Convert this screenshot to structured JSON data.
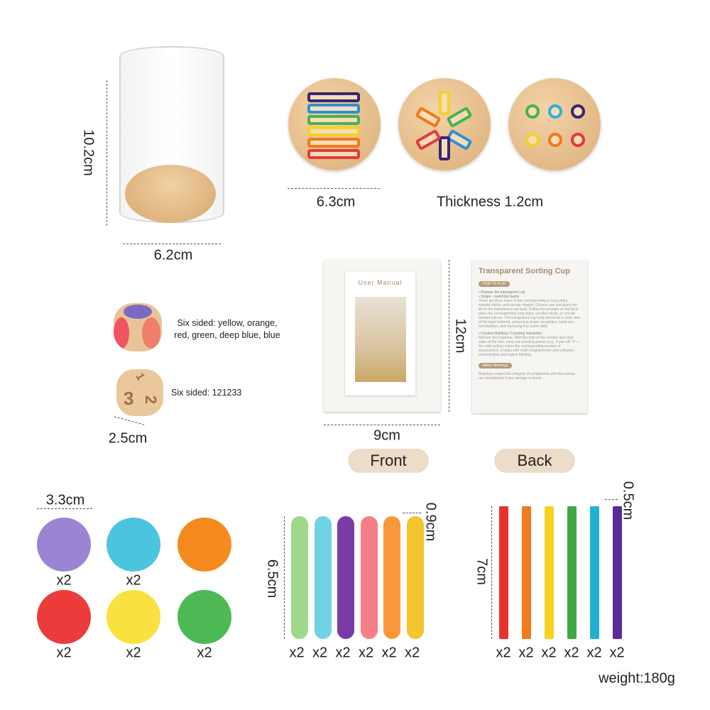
{
  "cup": {
    "height": "10.2cm",
    "width": "6.2cm"
  },
  "lids": {
    "diameter": "6.3cm",
    "thickness": "Thickness 1.2cm"
  },
  "dice": {
    "color_die": "Six sided: yellow, orange, red, green, deep blue, blue",
    "number_die": "Six sided: 121233",
    "size": "2.5cm",
    "number_faces": [
      "1",
      "3",
      "2"
    ]
  },
  "manual": {
    "height": "12cm",
    "width": "9cm",
    "front_label": "Front",
    "back_label": "Back",
    "front_title": "User Manual",
    "back": {
      "title": "Transparent Sorting Cup",
      "how_to_play": "HOW TO PLAY",
      "item1": "• Prepare the transparent cup",
      "item2": "• Shape - matching Game",
      "text2": "There are three types of lids corresponding to long strips, wooden sticks, and circular shapes. Choose one and place the lid on the transparent cup body. Follow the prompts on the lid to place the corresponding long strips, wooden sticks, or circular wooden pieces. The transparent cup body allows for a clear view of the input material, enhancing shape recognition, hand eye coordination, and improving fine motor skills.",
      "item3": "• Creative Building / Counting Interaction",
      "text3": "Roll two dice together. With the help of the number and color sides of the dice, carry out counting games (e.g., if you roll \"3\" + the color yellow, select the corresponding number of accessories). It helps with math enlightenment and cultivates concentration and logical thinking.",
      "safety": "Safety Warnings",
      "text4": "Regularly inspect the integrity of components and discontinue use immediately if any damage is found."
    }
  },
  "discs": {
    "size": "3.3cm",
    "items": [
      {
        "color": "#9c84d4",
        "count": "x2"
      },
      {
        "color": "#4cc4df",
        "count": "x2"
      },
      {
        "color": "#f58a1f"
      },
      {
        "color": "#ec3b3b",
        "count": "x2"
      },
      {
        "color": "#f9e23f",
        "count": "x2"
      },
      {
        "color": "#4db955",
        "count": "x2"
      }
    ]
  },
  "sticks": {
    "length": "6.5cm",
    "width": "0.9cm",
    "items": [
      {
        "color": "#9fd88a",
        "count": "x2"
      },
      {
        "color": "#6fd3e3",
        "count": "x2"
      },
      {
        "color": "#7a3aa8",
        "count": "x2"
      },
      {
        "color": "#f47f86",
        "count": "x2"
      },
      {
        "color": "#f7983a",
        "count": "x2"
      },
      {
        "color": "#f3c52e",
        "count": "x2"
      }
    ]
  },
  "dowels": {
    "length": "7cm",
    "width": "0.5cm",
    "items": [
      {
        "color": "#e8322a",
        "count": "x2"
      },
      {
        "color": "#f07a1c",
        "count": "x2"
      },
      {
        "color": "#f5d31e",
        "count": "x2"
      },
      {
        "color": "#3fa845",
        "count": "x2"
      },
      {
        "color": "#22b0d0",
        "count": "x2"
      },
      {
        "color": "#5a2b96",
        "count": "x2"
      }
    ]
  },
  "weight": "weight:180g"
}
